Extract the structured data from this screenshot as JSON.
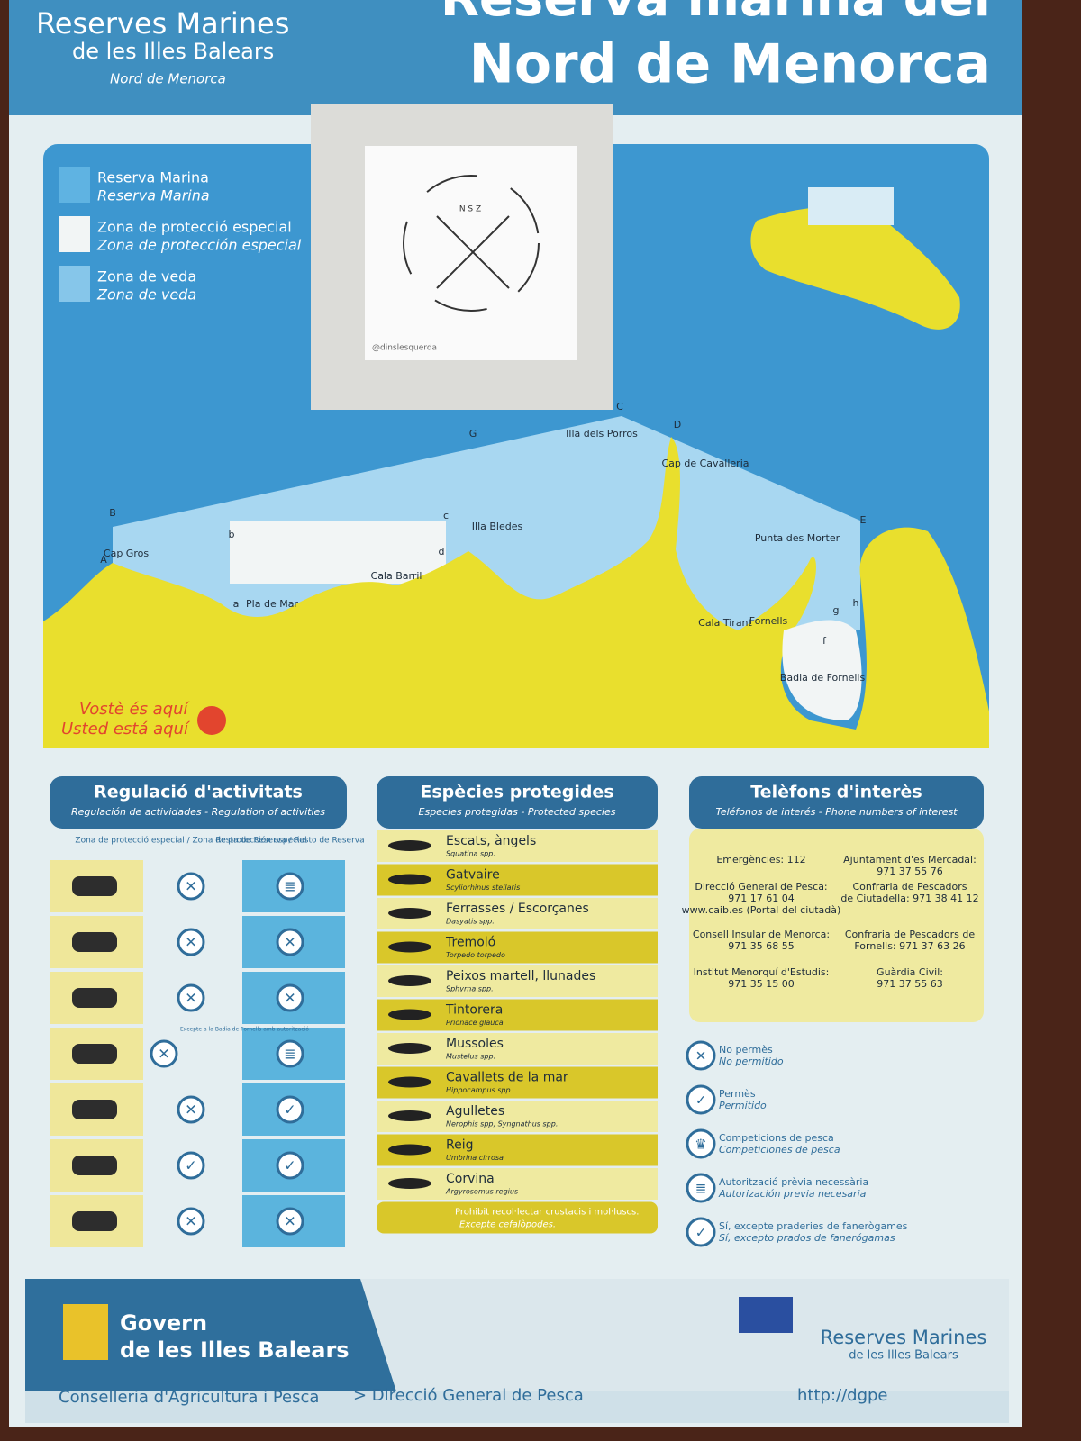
{
  "header": {
    "brand_line1": "Reserves Marines",
    "brand_line2": "de les Illes Balears",
    "brand_line3": "Nord de Menorca",
    "title_line1": "Reserva marina del",
    "title_line2": "Nord de Menorca"
  },
  "legend": [
    {
      "ca": "Reserva Marina",
      "es": "Reserva Marina"
    },
    {
      "ca": "Zona de protecció especial",
      "es": "Zona de protección especial"
    },
    {
      "ca": "Zona de veda",
      "es": "Zona de veda"
    }
  ],
  "sticker": {
    "compass": "N S Z",
    "handle": "@dinslesquerda"
  },
  "map_labels": [
    "G",
    "C",
    "Illa dels Porros",
    "D",
    "Cap de Cavalleria",
    "B",
    "A",
    "Cap Gros",
    "b",
    "a",
    "Pla de Mar",
    "Cala Barril",
    "c",
    "d",
    "Illa Bledes",
    "E",
    "Punta des Morter",
    "Cala Tirant",
    "Fornells",
    "g",
    "h",
    "f",
    "Badia de Fornells"
  ],
  "you_are_here": {
    "ca": "Vostè és aquí",
    "es": "Usted está aquí"
  },
  "regulation": {
    "title": "Regulació d'activitats",
    "subtitle": "Regulación de actividades - Regulation of activities",
    "col1": "Zona de protecció especial / Zona de protección especial",
    "col2": "Resta de Reserva / Resto de Reserva",
    "note": "Excepte a la Badia de Fornells amb autorització"
  },
  "species": {
    "title": "Espècies protegides",
    "subtitle": "Especies protegidas - Protected species",
    "items": [
      {
        "name": "Escats, àngels",
        "latin": "Squatina spp."
      },
      {
        "name": "Gatvaire",
        "latin": "Scyliorhinus stellaris"
      },
      {
        "name": "Ferrasses / Escorçanes",
        "latin": "Dasyatis spp."
      },
      {
        "name": "Tremoló",
        "latin": "Torpedo torpedo"
      },
      {
        "name": "Peixos martell, llunades",
        "latin": "Sphyrna spp."
      },
      {
        "name": "Tintorera",
        "latin": "Prionace glauca"
      },
      {
        "name": "Mussoles",
        "latin": "Mustelus spp."
      },
      {
        "name": "Cavallets de la mar",
        "latin": "Hippocampus spp."
      },
      {
        "name": "Agulletes",
        "latin": "Nerophis spp, Syngnathus spp."
      },
      {
        "name": "Reig",
        "latin": "Umbrina cirrosa"
      },
      {
        "name": "Corvina",
        "latin": "Argyrosomus regius"
      }
    ],
    "last": {
      "name": "Prohibit recol·lectar crustacis i mol·luscs.",
      "latin": "Excepte cefalòpodes."
    }
  },
  "phones": {
    "title": "Telèfons d'interès",
    "subtitle": "Teléfonos de interés - Phone numbers of interest",
    "left": [
      [
        "Emergències: 112"
      ],
      [
        "Direcció General de Pesca:",
        "971 17 61 04",
        "www.caib.es (Portal del ciutadà)"
      ],
      [
        "Consell Insular de Menorca:",
        "971 35 68 55"
      ],
      [
        "Institut Menorquí d'Estudis:",
        "971 35 15 00"
      ]
    ],
    "right": [
      [
        "Ajuntament d'es Mercadal:",
        "971 37 55 76"
      ],
      [
        "Confraria de Pescadors",
        "de Ciutadella: 971 38 41 12"
      ],
      [
        "Confraria de Pescadors de",
        "Fornells: 971 37 63 26"
      ],
      [
        "Guàrdia Civil:",
        "971 37 55 63"
      ]
    ]
  },
  "key": [
    {
      "ca": "No permès",
      "es": "No permitido"
    },
    {
      "ca": "Permès",
      "es": "Permitido"
    },
    {
      "ca": "Competicions de pesca",
      "es": "Competiciones de pesca"
    },
    {
      "ca": "Autorització prèvia necessària",
      "es": "Autorización previa necesaria"
    },
    {
      "ca": "Sí, excepte praderies de fanerògames",
      "es": "Sí, excepto prados de fanerógamas"
    }
  ],
  "footer": {
    "govern_line1": "Govern",
    "govern_line2": "de les Illes Balears",
    "logo_line1": "Reserves Marines",
    "logo_line2": "de les Illes Balears",
    "conselleria": "Conselleria d'Agricultura i Pesca",
    "direccio": "> Direcció General de Pesca",
    "url": "http://dgpe"
  }
}
